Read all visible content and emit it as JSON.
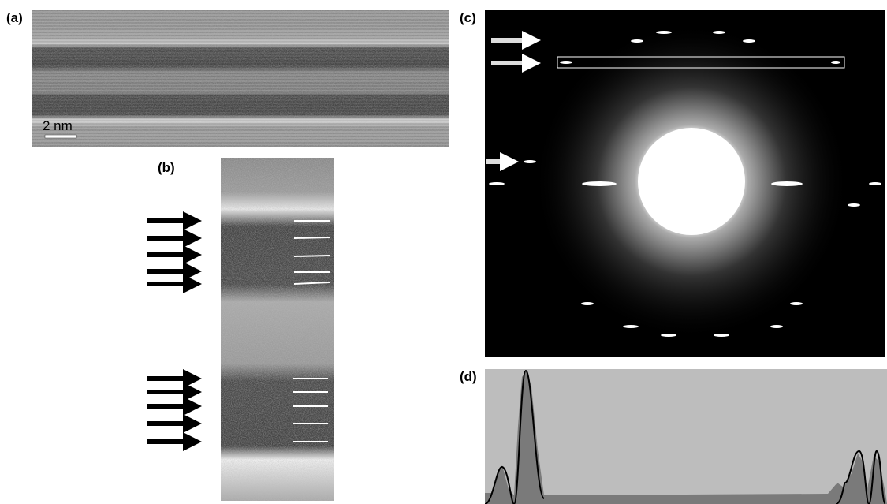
{
  "panels": [
    {
      "label": "(a)",
      "scale_bar": "2 nm"
    },
    {
      "label": "(b)"
    },
    {
      "label": "(c)"
    },
    {
      "label": "(d)"
    }
  ]
}
